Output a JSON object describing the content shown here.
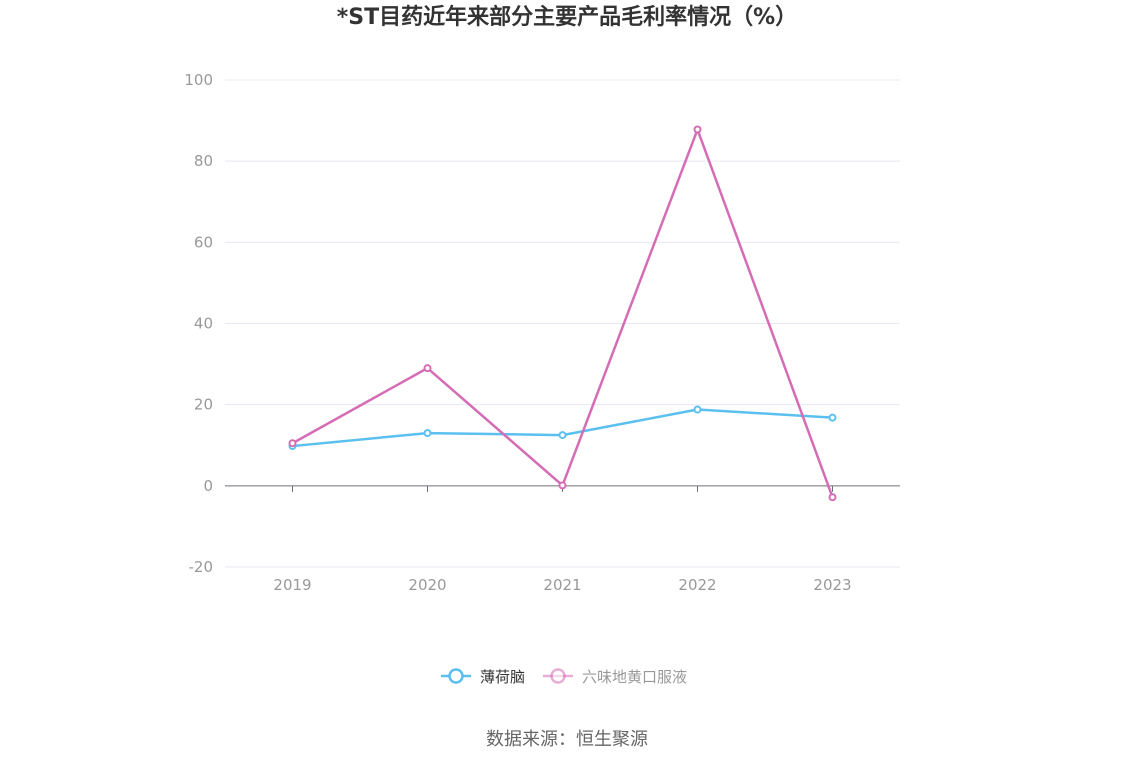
{
  "chart_data": {
    "type": "line",
    "title": "*ST目药近年来部分主要产品毛利率情况（%）",
    "categories": [
      "2019",
      "2020",
      "2021",
      "2022",
      "2023"
    ],
    "y_ticks": [
      "100",
      "80",
      "60",
      "40",
      "20",
      "0",
      "-20"
    ],
    "ylim": [
      -20,
      100
    ],
    "grid": true,
    "legend_position": "bottom-center",
    "series": [
      {
        "name": "薄荷脑",
        "color": "#5bc0f0",
        "values": [
          9.8,
          13.0,
          12.5,
          18.8,
          16.8
        ]
      },
      {
        "name": "六味地黄口服液",
        "color": "#d56cb5",
        "values": [
          10.5,
          29.0,
          0.1,
          87.8,
          -2.8
        ]
      }
    ]
  },
  "source": "数据来源：恒生聚源",
  "colors": {
    "grid": "#e6e9f2",
    "axis": "#6e7079",
    "label": "#999999",
    "legend_active_text": "#333333",
    "legend_inactive_text": "#999999"
  }
}
